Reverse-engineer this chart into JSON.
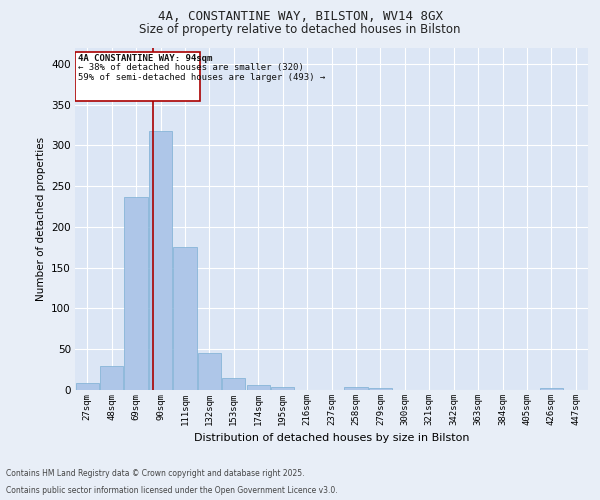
{
  "title1": "4A, CONSTANTINE WAY, BILSTON, WV14 8GX",
  "title2": "Size of property relative to detached houses in Bilston",
  "xlabel": "Distribution of detached houses by size in Bilston",
  "ylabel": "Number of detached properties",
  "categories": [
    "27sqm",
    "48sqm",
    "69sqm",
    "90sqm",
    "111sqm",
    "132sqm",
    "153sqm",
    "174sqm",
    "195sqm",
    "216sqm",
    "237sqm",
    "258sqm",
    "279sqm",
    "300sqm",
    "321sqm",
    "342sqm",
    "363sqm",
    "384sqm",
    "405sqm",
    "426sqm",
    "447sqm"
  ],
  "values": [
    8,
    30,
    237,
    318,
    175,
    45,
    15,
    6,
    4,
    0,
    0,
    4,
    2,
    0,
    0,
    0,
    0,
    0,
    0,
    2,
    0
  ],
  "bar_color": "#aec6e8",
  "bar_edge_color": "#7bafd4",
  "vline_color": "#aa0000",
  "annotation_title": "4A CONSTANTINE WAY: 94sqm",
  "annotation_line2": "← 38% of detached houses are smaller (320)",
  "annotation_line3": "59% of semi-detached houses are larger (493) →",
  "annotation_box_color": "#aa0000",
  "annotation_bg": "#ffffff",
  "ylim": [
    0,
    420
  ],
  "yticks": [
    0,
    50,
    100,
    150,
    200,
    250,
    300,
    350,
    400
  ],
  "footnote1": "Contains HM Land Registry data © Crown copyright and database right 2025.",
  "footnote2": "Contains public sector information licensed under the Open Government Licence v3.0.",
  "bg_color": "#e8eef7",
  "plot_bg_color": "#dce6f5"
}
